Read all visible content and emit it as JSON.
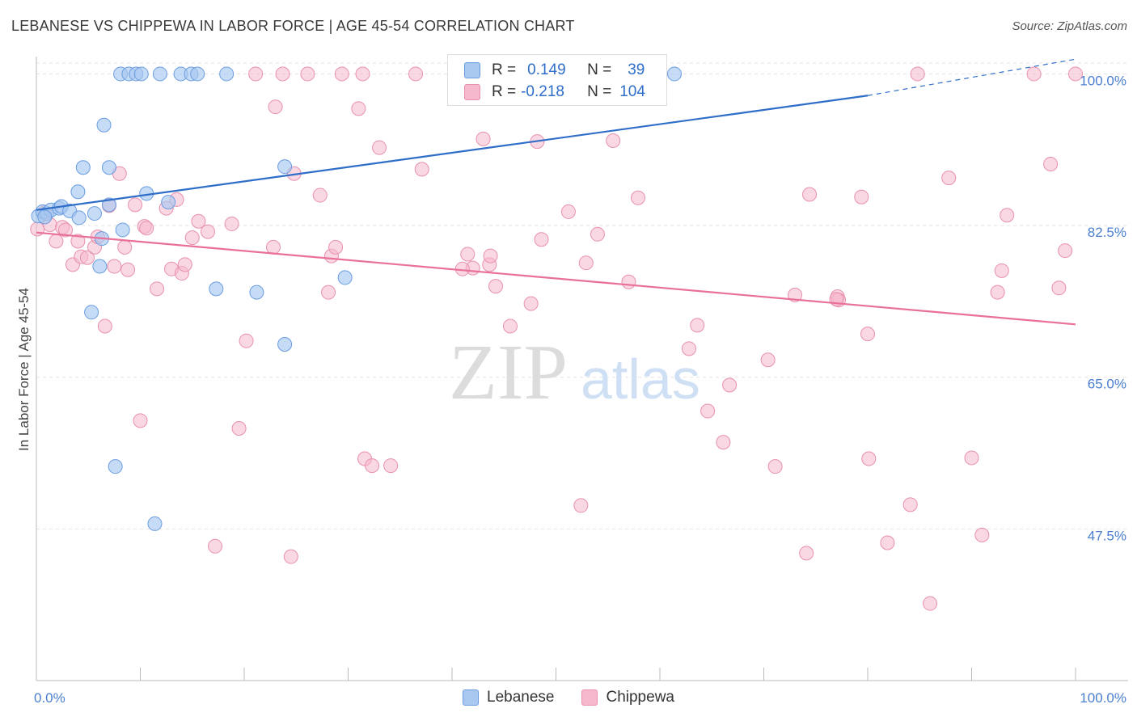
{
  "title": "LEBANESE VS CHIPPEWA IN LABOR FORCE | AGE 45-54 CORRELATION CHART",
  "source": "Source: ZipAtlas.com",
  "watermark": {
    "zip": "ZIP",
    "atlas": "atlas"
  },
  "legend": {
    "rows": [
      {
        "r_label": "R =",
        "r_value": "0.149",
        "n_label": "N =",
        "n_value": "39"
      },
      {
        "r_label": "R =",
        "r_value": "-0.218",
        "n_label": "N =",
        "n_value": "104"
      }
    ]
  },
  "colors": {
    "lebanese_fill": "#a8c8f0",
    "lebanese_stroke": "#6a9de0",
    "lebanese_line": "#2f6ec8",
    "chippewa_fill": "#f5b8cc",
    "chippewa_stroke": "#e890ae",
    "chippewa_line": "#e8709a",
    "tick_text": "#4a7fd0",
    "grid": "#e3e3e3"
  },
  "chart_data": {
    "type": "scatter",
    "title": "LEBANESE VS CHIPPEWA IN LABOR FORCE | AGE 45-54 CORRELATION CHART",
    "xlabel": "",
    "ylabel": "In Labor Force | Age 45-54",
    "xlim": [
      0,
      100
    ],
    "ylim": [
      30,
      102
    ],
    "x_tick_labels": [
      "0.0%",
      "100.0%"
    ],
    "y_ticks": [
      {
        "value": 47.5,
        "label": "47.5%"
      },
      {
        "value": 65.0,
        "label": "65.0%"
      },
      {
        "value": 82.5,
        "label": "82.5%"
      },
      {
        "value": 100.0,
        "label": "100.0%"
      }
    ],
    "grid": true,
    "legend_position": "bottom",
    "series": [
      {
        "name": "Lebanese",
        "trend": {
          "x0": 0,
          "y0": 84.3,
          "x1": 80,
          "y1": 97.5,
          "dashed_to_x": 100,
          "dashed_to_y": 101.7
        },
        "points": [
          [
            0.2,
            83.6
          ],
          [
            0.6,
            84.1
          ],
          [
            1.0,
            83.9
          ],
          [
            1.4,
            84.3
          ],
          [
            2.2,
            84.5
          ],
          [
            2.4,
            84.7
          ],
          [
            3.2,
            84.2
          ],
          [
            4.0,
            86.4
          ],
          [
            4.1,
            83.4
          ],
          [
            4.5,
            89.2
          ],
          [
            5.6,
            83.9
          ],
          [
            6.3,
            81.0
          ],
          [
            6.1,
            77.8
          ],
          [
            7.0,
            84.9
          ],
          [
            7.0,
            89.2
          ],
          [
            6.5,
            94.1
          ],
          [
            8.3,
            82.0
          ],
          [
            8.1,
            100.0
          ],
          [
            8.9,
            100.0
          ],
          [
            9.6,
            100.0
          ],
          [
            10.1,
            100.0
          ],
          [
            11.9,
            100.0
          ],
          [
            13.9,
            100.0
          ],
          [
            14.9,
            100.0
          ],
          [
            15.5,
            100.0
          ],
          [
            18.3,
            100.0
          ],
          [
            10.6,
            86.2
          ],
          [
            12.7,
            85.2
          ],
          [
            5.3,
            72.5
          ],
          [
            7.6,
            54.7
          ],
          [
            11.4,
            48.1
          ],
          [
            17.3,
            75.2
          ],
          [
            21.2,
            74.8
          ],
          [
            23.9,
            89.3
          ],
          [
            23.9,
            68.8
          ],
          [
            29.7,
            76.5
          ],
          [
            45.8,
            100.0
          ],
          [
            61.4,
            100.0
          ],
          [
            0.8,
            83.5
          ]
        ]
      },
      {
        "name": "Chippewa",
        "trend": {
          "x0": 0,
          "y0": 81.7,
          "x1": 100,
          "y1": 71.1
        },
        "points": [
          [
            0.1,
            82.1
          ],
          [
            0.8,
            84.0
          ],
          [
            1.3,
            82.6
          ],
          [
            1.9,
            80.7
          ],
          [
            2.5,
            82.3
          ],
          [
            2.8,
            82.0
          ],
          [
            3.5,
            78.0
          ],
          [
            4.0,
            80.7
          ],
          [
            4.3,
            78.9
          ],
          [
            4.9,
            78.8
          ],
          [
            5.6,
            80.0
          ],
          [
            5.9,
            81.2
          ],
          [
            6.6,
            70.9
          ],
          [
            7.0,
            84.8
          ],
          [
            7.5,
            77.8
          ],
          [
            8.0,
            88.5
          ],
          [
            8.5,
            80.0
          ],
          [
            8.8,
            77.4
          ],
          [
            9.5,
            84.9
          ],
          [
            10.0,
            60.0
          ],
          [
            10.4,
            82.4
          ],
          [
            10.6,
            82.2
          ],
          [
            11.6,
            75.2
          ],
          [
            12.5,
            84.5
          ],
          [
            13.0,
            77.5
          ],
          [
            13.5,
            85.5
          ],
          [
            14.0,
            77.0
          ],
          [
            14.3,
            78.0
          ],
          [
            15.0,
            81.1
          ],
          [
            15.6,
            83.0
          ],
          [
            16.5,
            81.8
          ],
          [
            17.2,
            45.5
          ],
          [
            18.8,
            82.7
          ],
          [
            19.5,
            59.1
          ],
          [
            20.2,
            69.2
          ],
          [
            21.1,
            100.0
          ],
          [
            22.8,
            80.0
          ],
          [
            23.0,
            96.2
          ],
          [
            23.7,
            100.0
          ],
          [
            24.5,
            44.3
          ],
          [
            24.8,
            88.5
          ],
          [
            26.1,
            100.0
          ],
          [
            27.3,
            86.0
          ],
          [
            28.1,
            74.8
          ],
          [
            28.4,
            79.0
          ],
          [
            28.8,
            80.0
          ],
          [
            29.4,
            100.0
          ],
          [
            31.0,
            96.0
          ],
          [
            31.4,
            100.0
          ],
          [
            31.6,
            55.6
          ],
          [
            32.3,
            54.8
          ],
          [
            33.0,
            91.5
          ],
          [
            34.1,
            54.8
          ],
          [
            36.5,
            100.0
          ],
          [
            37.1,
            89.0
          ],
          [
            41.5,
            79.2
          ],
          [
            42.0,
            77.6
          ],
          [
            43.0,
            92.5
          ],
          [
            43.6,
            78.0
          ],
          [
            43.7,
            79.0
          ],
          [
            44.2,
            75.5
          ],
          [
            45.6,
            70.9
          ],
          [
            47.6,
            73.5
          ],
          [
            48.2,
            92.2
          ],
          [
            48.6,
            80.9
          ],
          [
            51.2,
            84.1
          ],
          [
            52.4,
            50.2
          ],
          [
            52.9,
            78.2
          ],
          [
            54.0,
            81.5
          ],
          [
            55.5,
            92.3
          ],
          [
            57.0,
            76.0
          ],
          [
            57.9,
            85.7
          ],
          [
            62.8,
            68.3
          ],
          [
            63.6,
            71.0
          ],
          [
            64.6,
            61.1
          ],
          [
            66.1,
            57.5
          ],
          [
            66.7,
            64.1
          ],
          [
            70.4,
            67.0
          ],
          [
            71.1,
            54.7
          ],
          [
            74.1,
            44.7
          ],
          [
            74.4,
            86.1
          ],
          [
            77.1,
            74.3
          ],
          [
            77.2,
            73.9
          ],
          [
            79.4,
            85.8
          ],
          [
            80.0,
            70.0
          ],
          [
            80.1,
            55.6
          ],
          [
            81.9,
            45.9
          ],
          [
            84.1,
            50.3
          ],
          [
            84.8,
            100.0
          ],
          [
            86.0,
            38.9
          ],
          [
            87.8,
            88.0
          ],
          [
            90.0,
            55.7
          ],
          [
            91.0,
            46.8
          ],
          [
            92.5,
            74.8
          ],
          [
            92.9,
            77.3
          ],
          [
            93.4,
            83.7
          ],
          [
            96.0,
            100.0
          ],
          [
            97.6,
            89.6
          ],
          [
            98.4,
            75.3
          ],
          [
            99.0,
            79.6
          ],
          [
            100.0,
            100.0
          ],
          [
            77.0,
            74.0
          ],
          [
            73.0,
            74.5
          ],
          [
            41.0,
            77.5
          ]
        ]
      }
    ]
  },
  "bottom_legend": [
    {
      "label": "Lebanese"
    },
    {
      "label": "Chippewa"
    }
  ]
}
